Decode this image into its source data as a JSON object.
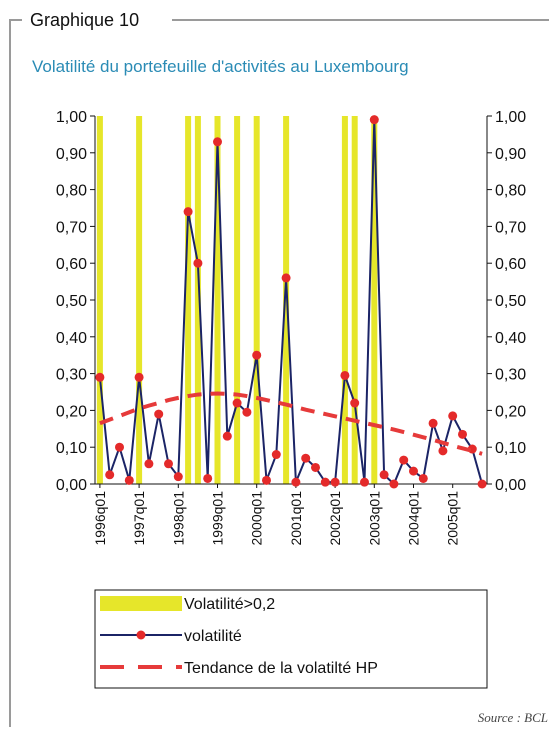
{
  "chart_data": {
    "type": "combo",
    "label": "Graphique 10",
    "title": "Volatilité du portefeuille d'activités au Luxembourg",
    "source": "Source : BCL",
    "categories": [
      "1996q01",
      null,
      null,
      null,
      "1997q01",
      null,
      null,
      null,
      "1998q01",
      null,
      null,
      null,
      "1999q01",
      null,
      null,
      null,
      "2000q01",
      null,
      null,
      null,
      "2001q01",
      null,
      null,
      null,
      "2002q01",
      null,
      null,
      null,
      "2003q01",
      null,
      null,
      null,
      "2004q01",
      null,
      null,
      null,
      "2005q01",
      null,
      null,
      null
    ],
    "ylim": [
      0,
      1
    ],
    "yticks": [
      {
        "value": 0,
        "label": "0,00"
      },
      {
        "value": 0.1,
        "label": "0,10"
      },
      {
        "value": 0.2,
        "label": "0,20"
      },
      {
        "value": 0.3,
        "label": "0,30"
      },
      {
        "value": 0.4,
        "label": "0,40"
      },
      {
        "value": 0.5,
        "label": "0,50"
      },
      {
        "value": 0.6,
        "label": "0,60"
      },
      {
        "value": 0.7,
        "label": "0,70"
      },
      {
        "value": 0.8,
        "label": "0,80"
      },
      {
        "value": 0.9,
        "label": "0,90"
      },
      {
        "value": 1,
        "label": "1,00"
      }
    ],
    "y2lim": [
      0,
      1
    ],
    "y2ticks": [
      {
        "value": 0,
        "label": "0,00"
      },
      {
        "value": 0.1,
        "label": "0,10"
      },
      {
        "value": 0.2,
        "label": "0,20"
      },
      {
        "value": 0.3,
        "label": "0,30"
      },
      {
        "value": 0.4,
        "label": "0,40"
      },
      {
        "value": 0.5,
        "label": "0,50"
      },
      {
        "value": 0.6,
        "label": "0,60"
      },
      {
        "value": 0.7,
        "label": "0,70"
      },
      {
        "value": 0.8,
        "label": "0,80"
      },
      {
        "value": 0.9,
        "label": "0,90"
      },
      {
        "value": 1,
        "label": "1,00"
      }
    ],
    "series": [
      {
        "name": "Volatilité>0,2",
        "type": "bar",
        "color": "#e6e62a",
        "values": [
          1,
          0,
          0,
          0,
          1,
          0,
          0,
          0,
          0,
          1,
          1,
          0,
          1,
          0,
          1,
          0,
          1,
          0,
          0,
          1,
          0,
          0,
          0,
          0,
          0,
          1,
          1,
          0,
          1,
          0,
          0,
          0,
          0,
          0,
          0,
          0,
          0,
          0,
          0,
          0
        ]
      },
      {
        "name": "volatilité",
        "type": "line",
        "color": "#1b2466",
        "marker_color": "#e42a2a",
        "values": [
          0.29,
          0.025,
          0.1,
          0.01,
          0.29,
          0.055,
          0.19,
          0.055,
          0.02,
          0.74,
          0.6,
          0.015,
          0.93,
          0.13,
          0.22,
          0.195,
          0.35,
          0.01,
          0.08,
          0.56,
          0.005,
          0.07,
          0.045,
          0.005,
          0.005,
          0.295,
          0.22,
          0.005,
          0.99,
          0.025,
          0,
          0.065,
          0.035,
          0.015,
          0.165,
          0.09,
          0.185,
          0.135,
          0.095,
          0
        ]
      },
      {
        "name": "Tendance de la volatilté HP",
        "type": "line",
        "dashed": true,
        "color": "#e63a3a",
        "values": [
          0.165,
          0.175,
          0.185,
          0.195,
          0.205,
          0.213,
          0.22,
          0.228,
          0.234,
          0.239,
          0.243,
          0.245,
          0.246,
          0.245,
          0.243,
          0.239,
          0.234,
          0.228,
          0.222,
          0.216,
          0.209,
          0.202,
          0.196,
          0.19,
          0.184,
          0.178,
          0.172,
          0.166,
          0.16,
          0.154,
          0.148,
          0.141,
          0.134,
          0.127,
          0.12,
          0.112,
          0.104,
          0.097,
          0.09,
          0.082
        ]
      }
    ]
  }
}
